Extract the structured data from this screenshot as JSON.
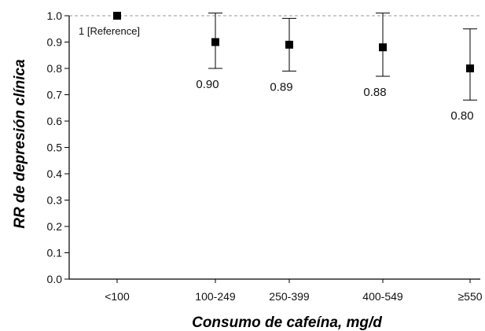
{
  "chart_data": {
    "type": "scatter",
    "title": "",
    "xlabel": "Consumo de cafeína, mg/d",
    "ylabel": "RR de depresión clínica",
    "ylim": [
      0.0,
      1.0
    ],
    "yticks": [
      "0.0",
      "0.1",
      "0.2",
      "0.3",
      "0.4",
      "0.5",
      "0.6",
      "0.7",
      "0.8",
      "0.9",
      "1.0"
    ],
    "categories": [
      "<100",
      "100-249",
      "250-399",
      "400-549",
      "≥550"
    ],
    "series": [
      {
        "values": [
          1.0,
          0.9,
          0.89,
          0.88,
          0.8
        ],
        "ci_lower": [
          null,
          0.8,
          0.79,
          0.77,
          0.68
        ],
        "ci_upper": [
          null,
          1.01,
          0.99,
          1.01,
          0.95
        ],
        "labels": [
          "1 [Reference]",
          "0.90",
          "0.89",
          "0.88",
          "0.80"
        ]
      }
    ],
    "reference_line": 1.0,
    "grid": false,
    "legend": "none",
    "marker_color": "#000000",
    "reference_line_color": "#999999"
  }
}
